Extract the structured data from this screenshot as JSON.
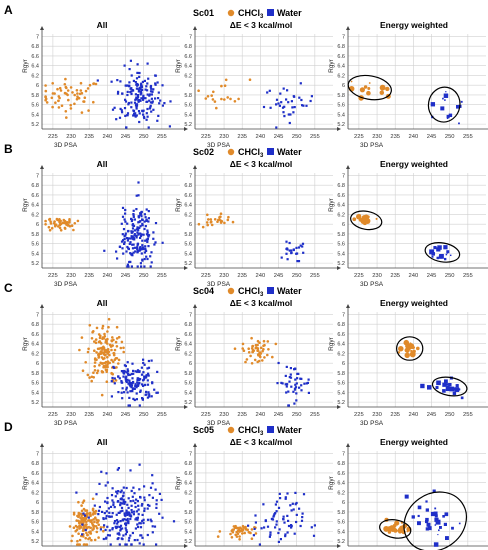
{
  "legend": {
    "chcl3_label": "CHCl",
    "chcl3_subscript": "3",
    "water_label": "Water"
  },
  "colors": {
    "chcl3": "#e08a2a",
    "water": "#1f2fc8",
    "grid": "#d0d0d0",
    "axis": "#444444"
  },
  "rows": [
    {
      "letter": "A",
      "name": "Sc01",
      "panels": [
        {
          "title": "All",
          "xlabel": "3D PSA",
          "ylabel": "Rgyr",
          "xticks": [
            225,
            230,
            235,
            240,
            245,
            250,
            255
          ],
          "yticks": [
            "7",
            "6.8",
            "6.6",
            "6.4",
            "6.2",
            "6",
            "5.8",
            "5.6",
            "5.4",
            "5.2"
          ],
          "chcl3": {
            "cx": 230,
            "cy": 5.78,
            "sx": 4.2,
            "sy": 0.17,
            "n": 60
          },
          "water": {
            "cx": 248.5,
            "cy": 5.75,
            "sx": 3.2,
            "sy": 0.3,
            "n": 170
          }
        },
        {
          "title": "ΔE < 3 kcal/mol",
          "xlabel": "3D PSA",
          "ylabel": "Rgyr",
          "xticks": [
            225,
            230,
            235,
            240,
            245,
            250,
            255
          ],
          "yticks": [
            "7",
            "6.8",
            "6.6",
            "6.4",
            "6.2",
            "6",
            "5.8",
            "5.6",
            "5.4",
            "5.2"
          ],
          "chcl3": {
            "cx": 230,
            "cy": 5.85,
            "sx": 3.5,
            "sy": 0.15,
            "n": 18
          },
          "water": {
            "cx": 248,
            "cy": 5.62,
            "sx": 3.5,
            "sy": 0.18,
            "n": 36
          }
        },
        {
          "title": "Energy weighted",
          "xlabel": "3D PSA",
          "ylabel": "Rgyr",
          "xticks": [
            225,
            230,
            235,
            240,
            245,
            250,
            255
          ],
          "yticks": [
            "7",
            "6.8",
            "6.6",
            "6.4",
            "6.2",
            "6",
            "5.8",
            "5.6",
            "5.4",
            "5.2"
          ],
          "chcl3": {
            "cx": 228,
            "cy": 5.95,
            "sx": 2.5,
            "sy": 0.1,
            "n": 12
          },
          "water": {
            "cx": 248.5,
            "cy": 5.6,
            "sx": 1.8,
            "sy": 0.15,
            "n": 14
          }
        }
      ]
    },
    {
      "letter": "B",
      "name": "Sc02",
      "panels": [
        {
          "title": "All",
          "xlabel": "3D PSA",
          "ylabel": "Rgyr",
          "xticks": [
            225,
            230,
            235,
            240,
            245,
            250,
            255
          ],
          "yticks": [
            "7",
            "6.8",
            "6.6",
            "6.4",
            "6.2",
            "6",
            "5.8",
            "5.6",
            "5.4",
            "5.2"
          ],
          "chcl3": {
            "cx": 227,
            "cy": 6.02,
            "sx": 2.5,
            "sy": 0.07,
            "n": 50
          },
          "water": {
            "cx": 248,
            "cy": 5.75,
            "sx": 2.2,
            "sy": 0.35,
            "n": 190
          }
        },
        {
          "title": "ΔE < 3 kcal/mol",
          "xlabel": "3D PSA",
          "ylabel": "Rgyr",
          "xticks": [
            225,
            230,
            235,
            240,
            245,
            250,
            255
          ],
          "yticks": [
            "7",
            "6.8",
            "6.6",
            "6.4",
            "6.2",
            "6",
            "5.8",
            "5.6",
            "5.4",
            "5.2"
          ],
          "chcl3": {
            "cx": 228,
            "cy": 6.05,
            "sx": 2.2,
            "sy": 0.07,
            "n": 24
          },
          "water": {
            "cx": 248,
            "cy": 5.45,
            "sx": 2.3,
            "sy": 0.1,
            "n": 24
          }
        },
        {
          "title": "Energy weighted",
          "xlabel": "3D PSA",
          "ylabel": "Rgyr",
          "xticks": [
            225,
            230,
            235,
            240,
            245,
            250,
            255
          ],
          "yticks": [
            "7",
            "6.8",
            "6.6",
            "6.4",
            "6.2",
            "6",
            "5.8",
            "5.6",
            "5.4",
            "5.2"
          ],
          "chcl3": {
            "cx": 227,
            "cy": 6.08,
            "sx": 1.8,
            "sy": 0.06,
            "n": 14
          },
          "water": {
            "cx": 248,
            "cy": 5.42,
            "sx": 2,
            "sy": 0.08,
            "n": 16
          }
        }
      ]
    },
    {
      "letter": "C",
      "name": "Sc04",
      "panels": [
        {
          "title": "All",
          "xlabel": "3D PSA",
          "ylabel": "Rgyr",
          "xticks": [
            225,
            230,
            235,
            240,
            245,
            250,
            255
          ],
          "yticks": [
            "7",
            "6.8",
            "6.6",
            "6.4",
            "6.2",
            "6",
            "5.8",
            "5.6",
            "5.4",
            "5.2"
          ],
          "chcl3": {
            "cx": 239,
            "cy": 6.2,
            "sx": 2.3,
            "sy": 0.3,
            "n": 150
          },
          "water": {
            "cx": 247.5,
            "cy": 5.6,
            "sx": 2.8,
            "sy": 0.22,
            "n": 140
          }
        },
        {
          "title": "ΔE < 3 kcal/mol",
          "xlabel": "3D PSA",
          "ylabel": "Rgyr",
          "xticks": [
            225,
            230,
            235,
            240,
            245,
            250,
            255
          ],
          "yticks": [
            "7",
            "6.8",
            "6.6",
            "6.4",
            "6.2",
            "6",
            "5.8",
            "5.6",
            "5.4",
            "5.2"
          ],
          "chcl3": {
            "cx": 239,
            "cy": 6.25,
            "sx": 2,
            "sy": 0.12,
            "n": 50
          },
          "water": {
            "cx": 249,
            "cy": 5.6,
            "sx": 2.5,
            "sy": 0.18,
            "n": 45
          }
        },
        {
          "title": "Energy weighted",
          "xlabel": "3D PSA",
          "ylabel": "Rgyr",
          "xticks": [
            225,
            230,
            235,
            240,
            245,
            250,
            255
          ],
          "yticks": [
            "7",
            "6.8",
            "6.6",
            "6.4",
            "6.2",
            "6",
            "5.8",
            "5.6",
            "5.4",
            "5.2"
          ],
          "chcl3": {
            "cx": 239,
            "cy": 6.3,
            "sx": 1.5,
            "sy": 0.1,
            "n": 22
          },
          "water": {
            "cx": 250,
            "cy": 5.52,
            "sx": 2,
            "sy": 0.07,
            "n": 26
          }
        }
      ]
    },
    {
      "letter": "D",
      "name": "Sc05",
      "panels": [
        {
          "title": "All",
          "xlabel": "3D PSA",
          "ylabel": "Rgyr",
          "xticks": [
            225,
            230,
            235,
            240,
            245,
            250,
            255
          ],
          "yticks": [
            "7",
            "6.8",
            "6.6",
            "6.4",
            "6.2",
            "6",
            "5.8",
            "5.6",
            "5.4",
            "5.2"
          ],
          "chcl3": {
            "cx": 234,
            "cy": 5.55,
            "sx": 1.8,
            "sy": 0.2,
            "n": 140
          },
          "water": {
            "cx": 245,
            "cy": 5.75,
            "sx": 4.5,
            "sy": 0.35,
            "n": 230
          }
        },
        {
          "title": "ΔE < 3 kcal/mol",
          "xlabel": "3D PSA",
          "ylabel": "Rgyr",
          "xticks": [
            225,
            230,
            235,
            240,
            245,
            250,
            255
          ],
          "yticks": [
            "7",
            "6.8",
            "6.6",
            "6.4",
            "6.2",
            "6",
            "5.8",
            "5.6",
            "5.4",
            "5.2"
          ],
          "chcl3": {
            "cx": 234,
            "cy": 5.4,
            "sx": 2.2,
            "sy": 0.07,
            "n": 45
          },
          "water": {
            "cx": 245,
            "cy": 5.6,
            "sx": 3.5,
            "sy": 0.28,
            "n": 70
          }
        },
        {
          "title": "Energy weighted",
          "xlabel": "3D PSA",
          "ylabel": "Rgyr",
          "xticks": [
            225,
            230,
            235,
            240,
            245,
            250,
            255
          ],
          "yticks": [
            "7",
            "6.8",
            "6.6",
            "6.4",
            "6.2",
            "6",
            "5.8",
            "5.6",
            "5.4",
            "5.2"
          ],
          "chcl3": {
            "cx": 235,
            "cy": 5.45,
            "sx": 1.8,
            "sy": 0.06,
            "n": 20
          },
          "water": {
            "cx": 246,
            "cy": 5.6,
            "sx": 3.2,
            "sy": 0.28,
            "n": 30
          }
        }
      ]
    }
  ],
  "chart_data": {
    "type": "scatter",
    "description_series": [
      "CHCl3",
      "Water"
    ],
    "xlim": [
      222,
      260
    ],
    "ylim": [
      5.1,
      7.05
    ],
    "xlabel": "3D PSA",
    "ylabel": "Rgyr",
    "grid": true,
    "legend_placement": "top-center of each row",
    "panels_per_row": [
      "All",
      "ΔE < 3 kcal/mol",
      "Energy weighted"
    ],
    "rows": [
      "Sc01",
      "Sc02",
      "Sc04",
      "Sc05"
    ],
    "ellipses_in_energy_weighted": true
  }
}
